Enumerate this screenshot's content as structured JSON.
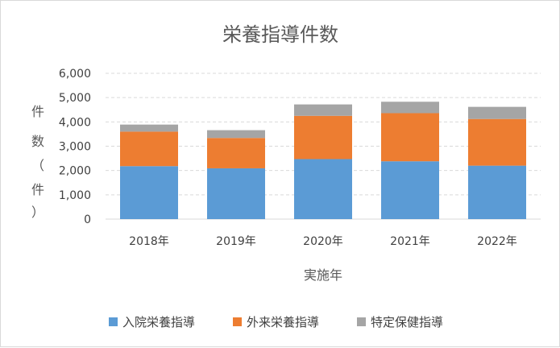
{
  "chart_data": {
    "type": "bar",
    "stacked": true,
    "title": "栄養指導件数",
    "xlabel": "実施年",
    "ylabel": "件数（件）",
    "ylabel_chars": [
      "件",
      "数",
      "（",
      "件",
      "）"
    ],
    "categories": [
      "2018年",
      "2019年",
      "2020年",
      "2021年",
      "2022年"
    ],
    "series": [
      {
        "name": "入院栄養指導",
        "color": "#5b9bd5",
        "values": [
          2180,
          2090,
          2470,
          2380,
          2200
        ]
      },
      {
        "name": "外来栄養指導",
        "color": "#ed7d31",
        "values": [
          1420,
          1250,
          1780,
          1980,
          1920
        ]
      },
      {
        "name": "特定保健指導",
        "color": "#a5a5a5",
        "values": [
          290,
          320,
          470,
          470,
          500
        ]
      }
    ],
    "ylim": [
      0,
      6000
    ],
    "yticks": [
      0,
      1000,
      2000,
      3000,
      4000,
      5000,
      6000
    ],
    "ytick_labels": [
      "0",
      "1,000",
      "2,000",
      "3,000",
      "4,000",
      "5,000",
      "6,000"
    ],
    "grid": true,
    "legend_position": "bottom"
  }
}
